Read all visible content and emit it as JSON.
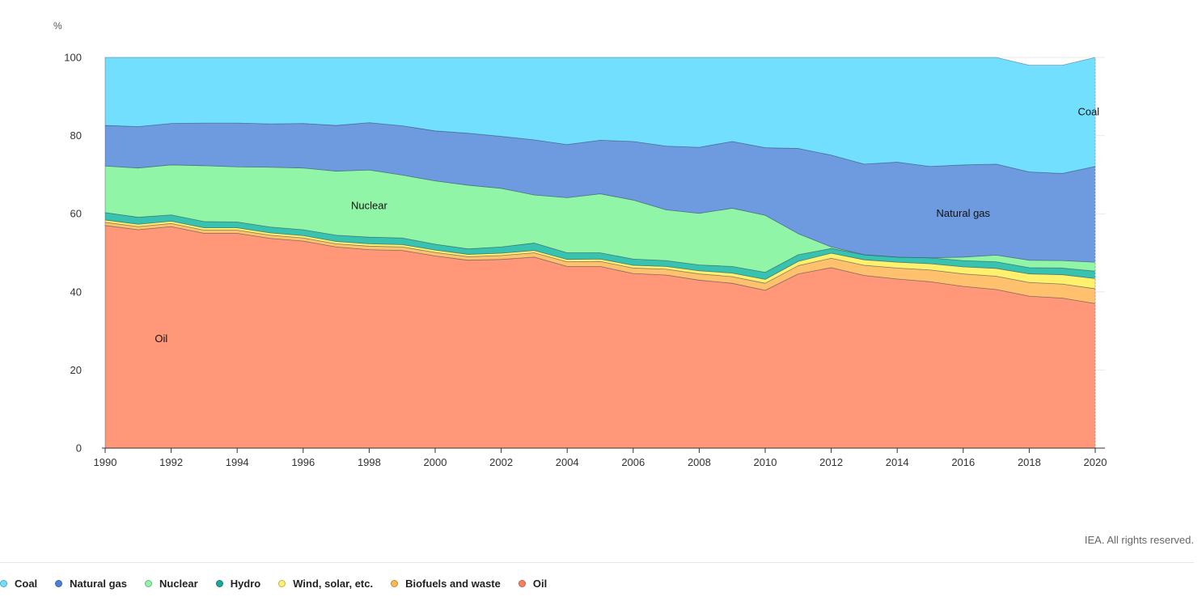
{
  "chart_data": {
    "type": "area",
    "stacked": true,
    "title": "",
    "xlabel": "",
    "ylabel": "%",
    "ylim": [
      0,
      100
    ],
    "yticks": [
      0,
      20,
      40,
      60,
      80,
      100
    ],
    "xticks": [
      1990,
      1992,
      1994,
      1996,
      1998,
      2000,
      2002,
      2004,
      2006,
      2008,
      2010,
      2012,
      2014,
      2016,
      2018,
      2020
    ],
    "grid": true,
    "legend_position": "bottom",
    "x": [
      1990,
      1991,
      1992,
      1993,
      1994,
      1995,
      1996,
      1997,
      1998,
      1999,
      2000,
      2001,
      2002,
      2003,
      2004,
      2005,
      2006,
      2007,
      2008,
      2009,
      2010,
      2011,
      2012,
      2013,
      2014,
      2015,
      2016,
      2017,
      2018,
      2019,
      2020
    ],
    "series": [
      {
        "name": "Oil",
        "color": "#ff9778",
        "values": [
          57.0,
          55.9,
          56.7,
          55.0,
          55.0,
          53.7,
          53.0,
          51.5,
          50.8,
          50.6,
          49.2,
          48.1,
          48.3,
          48.9,
          46.5,
          46.5,
          44.7,
          44.3,
          43.0,
          42.2,
          40.4,
          44.6,
          46.2,
          44.2,
          43.3,
          42.6,
          41.4,
          40.6,
          38.9,
          38.4,
          37.0
        ]
      },
      {
        "name": "Biofuels and waste",
        "color": "#ffc16e",
        "values": [
          0.8,
          0.8,
          0.8,
          0.8,
          0.8,
          0.8,
          0.8,
          0.8,
          0.9,
          0.9,
          0.9,
          0.9,
          1.0,
          1.1,
          1.2,
          1.3,
          1.4,
          1.5,
          1.6,
          1.7,
          1.8,
          2.1,
          2.4,
          2.6,
          2.8,
          3.0,
          3.2,
          3.4,
          3.5,
          3.6,
          3.8
        ]
      },
      {
        "name": "Wind, solar, etc.",
        "color": "#fff06e",
        "values": [
          0.6,
          0.6,
          0.6,
          0.6,
          0.6,
          0.6,
          0.6,
          0.6,
          0.6,
          0.6,
          0.6,
          0.6,
          0.6,
          0.6,
          0.6,
          0.6,
          0.7,
          0.7,
          0.8,
          0.9,
          1.0,
          1.1,
          1.3,
          1.4,
          1.5,
          1.6,
          1.8,
          2.0,
          2.2,
          2.4,
          2.6
        ]
      },
      {
        "name": "Hydro",
        "color": "#37c3b0",
        "values": [
          1.9,
          1.8,
          1.6,
          1.6,
          1.5,
          1.5,
          1.5,
          1.6,
          1.7,
          1.7,
          1.5,
          1.4,
          1.6,
          1.9,
          1.7,
          1.6,
          1.6,
          1.5,
          1.5,
          1.7,
          1.8,
          1.7,
          1.2,
          1.3,
          1.3,
          1.5,
          1.6,
          1.7,
          1.6,
          1.7,
          1.9
        ]
      },
      {
        "name": "Nuclear",
        "color": "#91f5a7",
        "values": [
          11.9,
          12.6,
          12.8,
          14.3,
          14.1,
          15.3,
          15.8,
          16.4,
          17.2,
          16.1,
          16.2,
          16.3,
          15.0,
          12.3,
          14.1,
          15.1,
          15.1,
          13.0,
          13.2,
          14.9,
          14.6,
          5.4,
          0.4,
          0.0,
          0.0,
          0.0,
          0.9,
          1.7,
          1.9,
          1.9,
          2.3
        ]
      },
      {
        "name": "Natural gas",
        "color": "#6e9ae0",
        "values": [
          10.4,
          10.6,
          10.6,
          10.9,
          11.2,
          11.1,
          11.4,
          11.7,
          12.1,
          12.6,
          12.8,
          13.3,
          13.3,
          14.1,
          13.6,
          13.7,
          15.0,
          16.3,
          16.9,
          17.1,
          17.3,
          21.8,
          23.5,
          23.2,
          24.3,
          23.4,
          23.6,
          23.3,
          22.6,
          22.3,
          24.5
        ]
      },
      {
        "name": "Coal",
        "color": "#73dfff",
        "values": [
          17.4,
          17.7,
          16.9,
          16.8,
          16.8,
          17.0,
          16.9,
          17.4,
          16.7,
          17.5,
          18.8,
          19.4,
          20.2,
          21.1,
          22.3,
          21.2,
          21.5,
          22.7,
          23.0,
          21.5,
          23.1,
          23.3,
          25.0,
          27.3,
          26.8,
          27.9,
          27.5,
          27.3,
          27.3,
          27.7,
          27.9
        ]
      }
    ],
    "annotations": [
      {
        "text": "Oil",
        "x": 1991.7,
        "y": 28
      },
      {
        "text": "Nuclear",
        "x": 1998.0,
        "y": 62
      },
      {
        "text": "Natural gas",
        "x": 2016.0,
        "y": 60
      },
      {
        "text": "Coal",
        "x": 2019.8,
        "y": 86
      }
    ]
  },
  "legend": [
    {
      "label": "Coal",
      "color": "#73dfff"
    },
    {
      "label": "Natural gas",
      "color": "#4f80d9"
    },
    {
      "label": "Nuclear",
      "color": "#91f5a7"
    },
    {
      "label": "Hydro",
      "color": "#1aa899"
    },
    {
      "label": "Wind, solar, etc.",
      "color": "#fff06e"
    },
    {
      "label": "Biofuels and waste",
      "color": "#ffb84d"
    },
    {
      "label": "Oil",
      "color": "#ff7f5c"
    }
  ],
  "credit": "IEA. All rights reserved."
}
